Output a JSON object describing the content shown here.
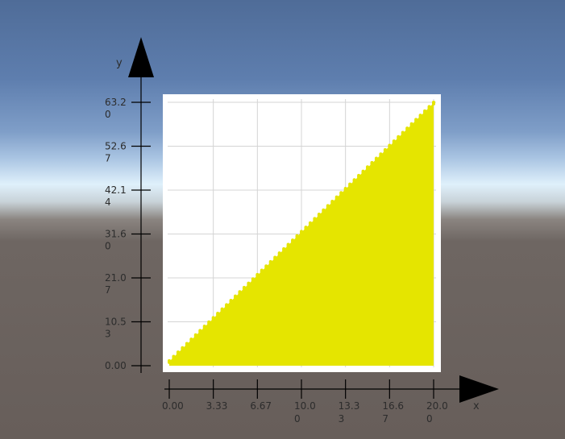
{
  "chart_data": {
    "type": "area",
    "title": "",
    "xlabel": "x",
    "ylabel": "y",
    "xlim": [
      0,
      20
    ],
    "ylim": [
      0,
      63.2
    ],
    "grid": true,
    "x_ticks": [
      "0.00",
      "3.33",
      "6.67",
      "10.00",
      "13.33",
      "16.67",
      "20.00"
    ],
    "y_ticks": [
      "0.00",
      "10.53",
      "21.07",
      "31.60",
      "42.14",
      "52.67",
      "63.20"
    ],
    "series": [
      {
        "x": [
          0,
          1,
          2,
          3,
          4,
          5,
          6,
          7,
          8,
          9,
          10,
          11,
          12,
          13,
          14,
          15,
          16,
          17,
          18,
          19,
          20
        ],
        "y": [
          1.0,
          4.1,
          7.2,
          10.3,
          13.4,
          16.5,
          19.6,
          22.7,
          25.8,
          28.9,
          32.0,
          35.1,
          38.2,
          41.3,
          44.4,
          47.5,
          50.6,
          53.7,
          56.8,
          59.9,
          63.0
        ],
        "color": "#e5e500"
      }
    ]
  }
}
